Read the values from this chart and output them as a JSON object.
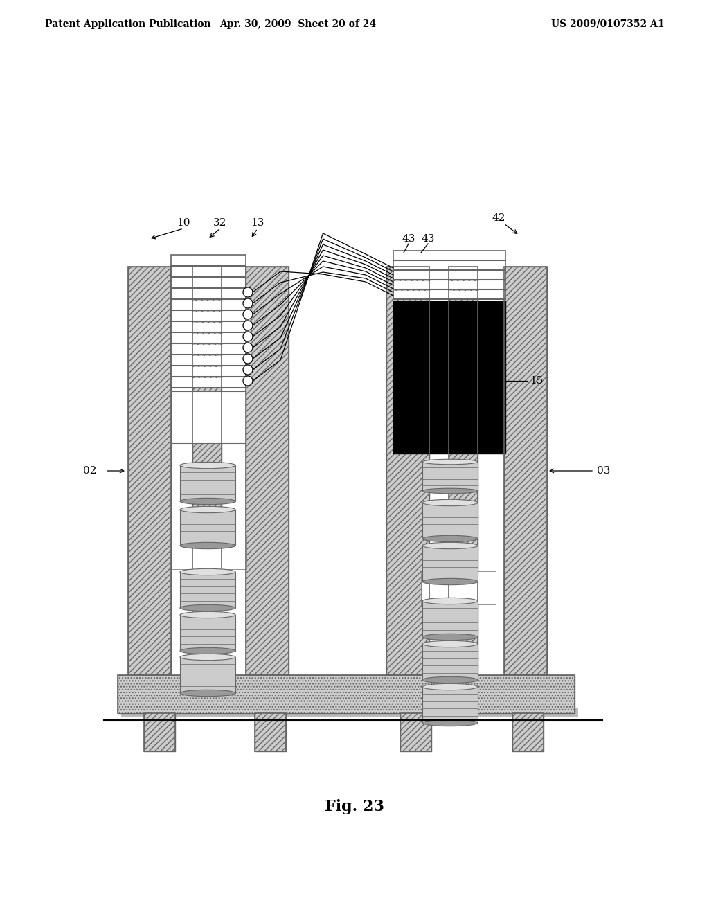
{
  "header_left": "Patent Application Publication",
  "header_mid": "Apr. 30, 2009  Sheet 20 of 24",
  "header_right": "US 2009/0107352 A1",
  "fig_label": "Fig. 23",
  "bg_color": "#ffffff",
  "black": "#000000",
  "dark_gray": "#666666",
  "med_gray": "#999999",
  "light_gray": "#cccccc",
  "hatch_gray": "#aaaaaa"
}
